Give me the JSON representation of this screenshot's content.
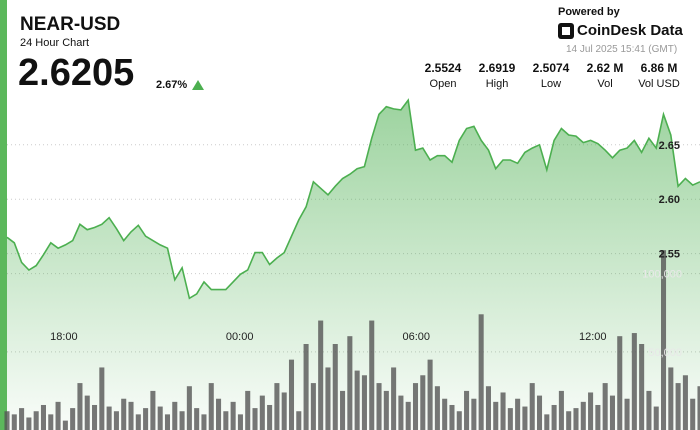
{
  "chart_data": {
    "type": "line",
    "title": "NEAR-USD",
    "subtitle": "24 Hour Chart",
    "price": "2.6205",
    "change": "2.67%",
    "powered_by": "Powered by",
    "brand": "CoinDesk Data",
    "timestamp": "14 Jul 2025 15:41 (GMT)",
    "stats": [
      {
        "value": "2.5524",
        "label": "Open"
      },
      {
        "value": "2.6919",
        "label": "High"
      },
      {
        "value": "2.5074",
        "label": "Low"
      },
      {
        "value": "2.62 M",
        "label": "Vol"
      },
      {
        "value": "6.86 M",
        "label": "Vol USD"
      }
    ],
    "xlim": [
      0,
      95
    ],
    "xticks": [
      {
        "value": 7.8,
        "label": "18:00"
      },
      {
        "value": 31.9,
        "label": "00:00"
      },
      {
        "value": 56.1,
        "label": "06:00"
      },
      {
        "value": 80.3,
        "label": "12:00"
      }
    ],
    "ylim": [
      2.388,
      2.783
    ],
    "yticks": [
      2.55,
      {
        "value": 2.6,
        "label": "2.60"
      },
      2.65
    ],
    "y2lim": [
      0,
      275000
    ],
    "y2ticks": [
      {
        "value": 50000,
        "label": "50,000"
      },
      {
        "value": 100000,
        "label": "100,000"
      }
    ],
    "grid": true,
    "series": [
      {
        "color": "#4caf50",
        "values": [
          2.565,
          2.56,
          2.542,
          2.535,
          2.539,
          2.549,
          2.56,
          2.555,
          2.558,
          2.562,
          2.577,
          2.572,
          2.574,
          2.577,
          2.583,
          2.573,
          2.562,
          2.57,
          2.576,
          2.566,
          2.562,
          2.558,
          2.555,
          2.526,
          2.537,
          2.509,
          2.513,
          2.524,
          2.517,
          2.517,
          2.517,
          2.524,
          2.531,
          2.535,
          2.551,
          2.551,
          2.54,
          2.546,
          2.551,
          2.566,
          2.581,
          2.593,
          2.616,
          2.61,
          2.604,
          2.612,
          2.619,
          2.623,
          2.628,
          2.63,
          2.656,
          2.678,
          2.685,
          2.683,
          2.682,
          2.691,
          2.645,
          2.647,
          2.636,
          2.64,
          2.64,
          2.634,
          2.654,
          2.665,
          2.667,
          2.654,
          2.645,
          2.628,
          2.636,
          2.636,
          2.633,
          2.643,
          2.647,
          2.65,
          2.627,
          2.654,
          2.665,
          2.659,
          2.658,
          2.652,
          2.654,
          2.651,
          2.645,
          2.638,
          2.645,
          2.647,
          2.654,
          2.643,
          2.656,
          2.647,
          2.678,
          2.659,
          2.612,
          2.619,
          2.613,
          2.616
        ]
      },
      {
        "type": "bar",
        "axis": "y2",
        "color": "#555555",
        "values": [
          12000,
          10000,
          14000,
          8000,
          12000,
          16000,
          10000,
          18000,
          6000,
          14000,
          30000,
          22000,
          16000,
          40000,
          15000,
          12000,
          20000,
          18000,
          10000,
          14000,
          25000,
          15000,
          10000,
          18000,
          12000,
          28000,
          14000,
          10000,
          30000,
          20000,
          12000,
          18000,
          10000,
          25000,
          14000,
          22000,
          16000,
          30000,
          24000,
          45000,
          12000,
          55000,
          30000,
          70000,
          40000,
          55000,
          25000,
          60000,
          38000,
          35000,
          70000,
          30000,
          25000,
          40000,
          22000,
          18000,
          30000,
          35000,
          45000,
          28000,
          20000,
          16000,
          12000,
          25000,
          20000,
          74000,
          28000,
          18000,
          24000,
          14000,
          20000,
          15000,
          30000,
          22000,
          10000,
          16000,
          25000,
          12000,
          14000,
          18000,
          24000,
          16000,
          30000,
          22000,
          60000,
          20000,
          62000,
          55000,
          25000,
          15000,
          115000,
          40000,
          30000,
          35000,
          20000,
          28000
        ]
      }
    ]
  }
}
